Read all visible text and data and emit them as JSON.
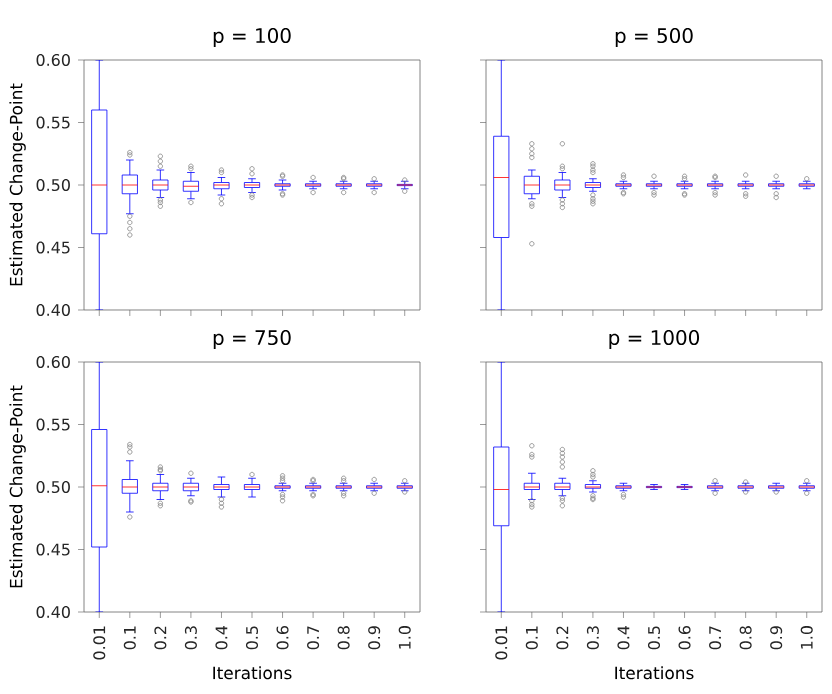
{
  "chart_data": [
    {
      "type": "box",
      "title": "p = 100",
      "ylabel": "Estimated Change-Point",
      "color": "#0000ff",
      "tick_labels": "y",
      "categories": [
        "0.01",
        "0.1",
        "0.2",
        "0.3",
        "0.4",
        "0.5",
        "0.6",
        "0.7",
        "0.8",
        "0.9",
        "1.0"
      ],
      "ylim": [
        0.4,
        0.6
      ],
      "yticks": [
        {
          "value": 0.4,
          "label": "0.40"
        },
        {
          "value": 0.45,
          "label": "0.45"
        },
        {
          "value": 0.5,
          "label": "0.50"
        },
        {
          "value": 0.55,
          "label": "0.55"
        },
        {
          "value": 0.6,
          "label": "0.60"
        }
      ],
      "boxes": [
        {
          "low": 0.4,
          "q1": 0.461,
          "median": 0.5,
          "q3": 0.56,
          "high": 0.6
        },
        {
          "low": 0.477,
          "q1": 0.493,
          "median": 0.5,
          "q3": 0.508,
          "high": 0.52,
          "outliers": [
            0.524,
            0.526,
            0.475,
            0.47,
            0.465,
            0.46
          ]
        },
        {
          "low": 0.49,
          "q1": 0.496,
          "median": 0.5,
          "q3": 0.504,
          "high": 0.512,
          "outliers": [
            0.515,
            0.519,
            0.523,
            0.483,
            0.486,
            0.488
          ]
        },
        {
          "low": 0.489,
          "q1": 0.495,
          "median": 0.499,
          "q3": 0.503,
          "high": 0.51,
          "outliers": [
            0.513,
            0.515,
            0.486
          ]
        },
        {
          "low": 0.492,
          "q1": 0.497,
          "median": 0.5,
          "q3": 0.502,
          "high": 0.506,
          "outliers": [
            0.51,
            0.512,
            0.489,
            0.485
          ]
        },
        {
          "low": 0.494,
          "q1": 0.498,
          "median": 0.5,
          "q3": 0.502,
          "high": 0.505,
          "outliers": [
            0.509,
            0.513,
            0.49,
            0.492
          ]
        },
        {
          "low": 0.496,
          "q1": 0.499,
          "median": 0.5,
          "q3": 0.501,
          "high": 0.504,
          "outliers": [
            0.507,
            0.508,
            0.493,
            0.492
          ]
        },
        {
          "low": 0.497,
          "q1": 0.499,
          "median": 0.5,
          "q3": 0.501,
          "high": 0.503,
          "outliers": [
            0.506,
            0.494
          ]
        },
        {
          "low": 0.497,
          "q1": 0.499,
          "median": 0.5,
          "q3": 0.501,
          "high": 0.503,
          "outliers": [
            0.506,
            0.505,
            0.494
          ]
        },
        {
          "low": 0.497,
          "q1": 0.499,
          "median": 0.5,
          "q3": 0.501,
          "high": 0.503,
          "outliers": [
            0.505,
            0.494
          ]
        },
        {
          "low": 0.497,
          "q1": 0.4995,
          "median": 0.5,
          "q3": 0.5005,
          "high": 0.503,
          "outliers": [
            0.504,
            0.495
          ]
        }
      ]
    },
    {
      "type": "box",
      "title": "p = 500",
      "color": "#0000ff",
      "tick_labels": false,
      "categories": [
        "0.01",
        "0.1",
        "0.2",
        "0.3",
        "0.4",
        "0.5",
        "0.6",
        "0.7",
        "0.8",
        "0.9",
        "1.0"
      ],
      "ylim": [
        0.4,
        0.6
      ],
      "yticks": [
        0.4,
        0.45,
        0.5,
        0.55,
        0.6
      ],
      "boxes": [
        {
          "low": 0.4,
          "q1": 0.458,
          "median": 0.506,
          "q3": 0.539,
          "high": 0.6
        },
        {
          "low": 0.489,
          "q1": 0.493,
          "median": 0.5,
          "q3": 0.507,
          "high": 0.512,
          "outliers": [
            0.533,
            0.529,
            0.525,
            0.522,
            0.485,
            0.483,
            0.453
          ]
        },
        {
          "low": 0.49,
          "q1": 0.496,
          "median": 0.5,
          "q3": 0.504,
          "high": 0.51,
          "outliers": [
            0.533,
            0.515,
            0.513,
            0.488,
            0.485,
            0.482
          ]
        },
        {
          "low": 0.495,
          "q1": 0.498,
          "median": 0.5,
          "q3": 0.502,
          "high": 0.505,
          "outliers": [
            0.517,
            0.515,
            0.512,
            0.51,
            0.492,
            0.489,
            0.487,
            0.485
          ]
        },
        {
          "low": 0.497,
          "q1": 0.499,
          "median": 0.5,
          "q3": 0.501,
          "high": 0.503,
          "outliers": [
            0.508,
            0.506,
            0.494,
            0.493
          ]
        },
        {
          "low": 0.497,
          "q1": 0.499,
          "median": 0.5,
          "q3": 0.501,
          "high": 0.503,
          "outliers": [
            0.507,
            0.494,
            0.492
          ]
        },
        {
          "low": 0.497,
          "q1": 0.499,
          "median": 0.5,
          "q3": 0.501,
          "high": 0.503,
          "outliers": [
            0.507,
            0.505,
            0.493,
            0.492
          ]
        },
        {
          "low": 0.497,
          "q1": 0.499,
          "median": 0.5,
          "q3": 0.501,
          "high": 0.503,
          "outliers": [
            0.507,
            0.506,
            0.494,
            0.492
          ]
        },
        {
          "low": 0.497,
          "q1": 0.499,
          "median": 0.5,
          "q3": 0.501,
          "high": 0.503,
          "outliers": [
            0.508,
            0.493,
            0.491
          ]
        },
        {
          "low": 0.497,
          "q1": 0.499,
          "median": 0.5,
          "q3": 0.501,
          "high": 0.503,
          "outliers": [
            0.507,
            0.493,
            0.49
          ]
        },
        {
          "low": 0.497,
          "q1": 0.499,
          "median": 0.5,
          "q3": 0.501,
          "high": 0.503,
          "outliers": [
            0.505
          ]
        }
      ]
    },
    {
      "type": "box",
      "title": "p = 750",
      "ylabel": "Estimated Change-Point",
      "xlabel": "Iterations",
      "color": "#0000ff",
      "categories": [
        "0.01",
        "0.1",
        "0.2",
        "0.3",
        "0.4",
        "0.5",
        "0.6",
        "0.7",
        "0.8",
        "0.9",
        "1.0"
      ],
      "ylim": [
        0.4,
        0.6
      ],
      "yticks": [
        {
          "value": 0.4,
          "label": "0.40"
        },
        {
          "value": 0.45,
          "label": "0.45"
        },
        {
          "value": 0.5,
          "label": "0.50"
        },
        {
          "value": 0.55,
          "label": "0.55"
        },
        {
          "value": 0.6,
          "label": "0.60"
        }
      ],
      "boxes": [
        {
          "low": 0.4,
          "q1": 0.452,
          "median": 0.501,
          "q3": 0.546,
          "high": 0.6
        },
        {
          "low": 0.48,
          "q1": 0.495,
          "median": 0.5,
          "q3": 0.506,
          "high": 0.521,
          "outliers": [
            0.534,
            0.532,
            0.528,
            0.476
          ]
        },
        {
          "low": 0.49,
          "q1": 0.497,
          "median": 0.5,
          "q3": 0.503,
          "high": 0.51,
          "outliers": [
            0.516,
            0.514,
            0.513,
            0.487,
            0.485
          ]
        },
        {
          "low": 0.493,
          "q1": 0.497,
          "median": 0.5,
          "q3": 0.503,
          "high": 0.507,
          "outliers": [
            0.511,
            0.489,
            0.488
          ]
        },
        {
          "low": 0.492,
          "q1": 0.498,
          "median": 0.5,
          "q3": 0.502,
          "high": 0.508,
          "outliers": [
            0.49,
            0.487,
            0.484
          ]
        },
        {
          "low": 0.492,
          "q1": 0.498,
          "median": 0.5,
          "q3": 0.502,
          "high": 0.507,
          "outliers": [
            0.51
          ]
        },
        {
          "low": 0.497,
          "q1": 0.499,
          "median": 0.5,
          "q3": 0.501,
          "high": 0.503,
          "outliers": [
            0.509,
            0.507,
            0.505,
            0.494,
            0.492,
            0.489
          ]
        },
        {
          "low": 0.497,
          "q1": 0.499,
          "median": 0.5,
          "q3": 0.501,
          "high": 0.503,
          "outliers": [
            0.506,
            0.505,
            0.494,
            0.493
          ]
        },
        {
          "low": 0.497,
          "q1": 0.499,
          "median": 0.5,
          "q3": 0.501,
          "high": 0.503,
          "outliers": [
            0.507,
            0.505,
            0.495,
            0.493
          ]
        },
        {
          "low": 0.497,
          "q1": 0.499,
          "median": 0.5,
          "q3": 0.501,
          "high": 0.503,
          "outliers": [
            0.506,
            0.495
          ]
        },
        {
          "low": 0.497,
          "q1": 0.499,
          "median": 0.5,
          "q3": 0.501,
          "high": 0.503,
          "outliers": [
            0.505,
            0.496
          ]
        }
      ]
    },
    {
      "type": "box",
      "title": "p = 1000",
      "xlabel": "Iterations",
      "color": "#0000ff",
      "tick_labels": "x",
      "categories": [
        "0.01",
        "0.1",
        "0.2",
        "0.3",
        "0.4",
        "0.5",
        "0.6",
        "0.7",
        "0.8",
        "0.9",
        "1.0"
      ],
      "ylim": [
        0.4,
        0.6
      ],
      "yticks": [
        0.4,
        0.45,
        0.5,
        0.55,
        0.6
      ],
      "boxes": [
        {
          "low": 0.4,
          "q1": 0.469,
          "median": 0.498,
          "q3": 0.532,
          "high": 0.6
        },
        {
          "low": 0.49,
          "q1": 0.498,
          "median": 0.5,
          "q3": 0.503,
          "high": 0.511,
          "outliers": [
            0.533,
            0.526,
            0.524,
            0.489,
            0.486,
            0.484
          ]
        },
        {
          "low": 0.493,
          "q1": 0.498,
          "median": 0.5,
          "q3": 0.503,
          "high": 0.507,
          "outliers": [
            0.53,
            0.527,
            0.524,
            0.52,
            0.516,
            0.491,
            0.489,
            0.485
          ]
        },
        {
          "low": 0.496,
          "q1": 0.499,
          "median": 0.5,
          "q3": 0.502,
          "high": 0.505,
          "outliers": [
            0.513,
            0.51,
            0.508,
            0.493,
            0.491,
            0.49
          ]
        },
        {
          "low": 0.497,
          "q1": 0.499,
          "median": 0.5,
          "q3": 0.501,
          "high": 0.503,
          "outliers": [
            0.494,
            0.492
          ]
        },
        {
          "low": 0.498,
          "q1": 0.4995,
          "median": 0.5,
          "q3": 0.5005,
          "high": 0.502
        },
        {
          "low": 0.498,
          "q1": 0.4995,
          "median": 0.5,
          "q3": 0.5005,
          "high": 0.502
        },
        {
          "low": 0.497,
          "q1": 0.499,
          "median": 0.5,
          "q3": 0.501,
          "high": 0.503,
          "outliers": [
            0.505,
            0.495
          ]
        },
        {
          "low": 0.497,
          "q1": 0.499,
          "median": 0.5,
          "q3": 0.501,
          "high": 0.503,
          "outliers": [
            0.504,
            0.496
          ]
        },
        {
          "low": 0.497,
          "q1": 0.499,
          "median": 0.5,
          "q3": 0.501,
          "high": 0.503,
          "outliers": [
            0.496
          ]
        },
        {
          "low": 0.497,
          "q1": 0.499,
          "median": 0.5,
          "q3": 0.501,
          "high": 0.503,
          "outliers": [
            0.505,
            0.495
          ]
        }
      ]
    }
  ]
}
